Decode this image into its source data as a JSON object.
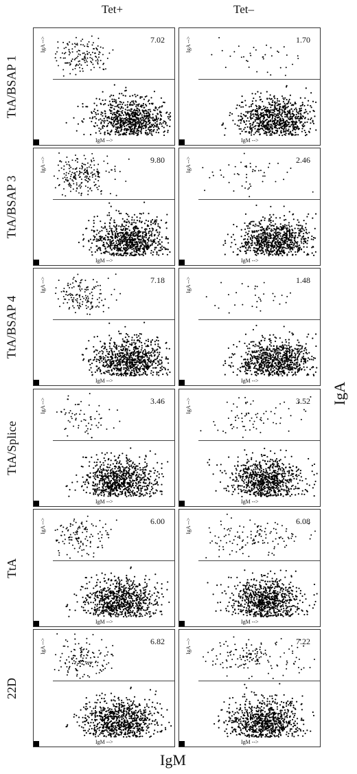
{
  "columns": [
    "Tet+",
    "Tet–"
  ],
  "axes": {
    "y": "IgA",
    "x": "IgM",
    "panel_y": "IgA -->",
    "panel_x": "IgM -->"
  },
  "chart_data": [
    {
      "type": "scatter",
      "row": "TtA/BSAP 1",
      "condition": "Tet+",
      "percent_IgA": "7.02"
    },
    {
      "type": "scatter",
      "row": "TtA/BSAP 1",
      "condition": "Tet–",
      "percent_IgA": "1.70"
    },
    {
      "type": "scatter",
      "row": "TtA/BSAP 3",
      "condition": "Tet+",
      "percent_IgA": "9.80"
    },
    {
      "type": "scatter",
      "row": "TtA/BSAP 3",
      "condition": "Tet–",
      "percent_IgA": "2.46"
    },
    {
      "type": "scatter",
      "row": "TtA/BSAP 4",
      "condition": "Tet+",
      "percent_IgA": "7.18"
    },
    {
      "type": "scatter",
      "row": "TtA/BSAP 4",
      "condition": "Tet–",
      "percent_IgA": "1.48"
    },
    {
      "type": "scatter",
      "row": "TtA/Splice",
      "condition": "Tet+",
      "percent_IgA": "3.46"
    },
    {
      "type": "scatter",
      "row": "TtA/Splice",
      "condition": "Tet–",
      "percent_IgA": "3.52"
    },
    {
      "type": "scatter",
      "row": "TtA",
      "condition": "Tet+",
      "percent_IgA": "6.00"
    },
    {
      "type": "scatter",
      "row": "TtA",
      "condition": "Tet–",
      "percent_IgA": "6.08"
    },
    {
      "type": "scatter",
      "row": "22D",
      "condition": "Tet+",
      "percent_IgA": "6.82"
    },
    {
      "type": "scatter",
      "row": "22D",
      "condition": "Tet–",
      "percent_IgA": "7.22"
    }
  ],
  "rows": [
    "TtA/BSAP 1",
    "TtA/BSAP 3",
    "TtA/BSAP 4",
    "TtA/Splice",
    "TtA",
    "22D"
  ]
}
